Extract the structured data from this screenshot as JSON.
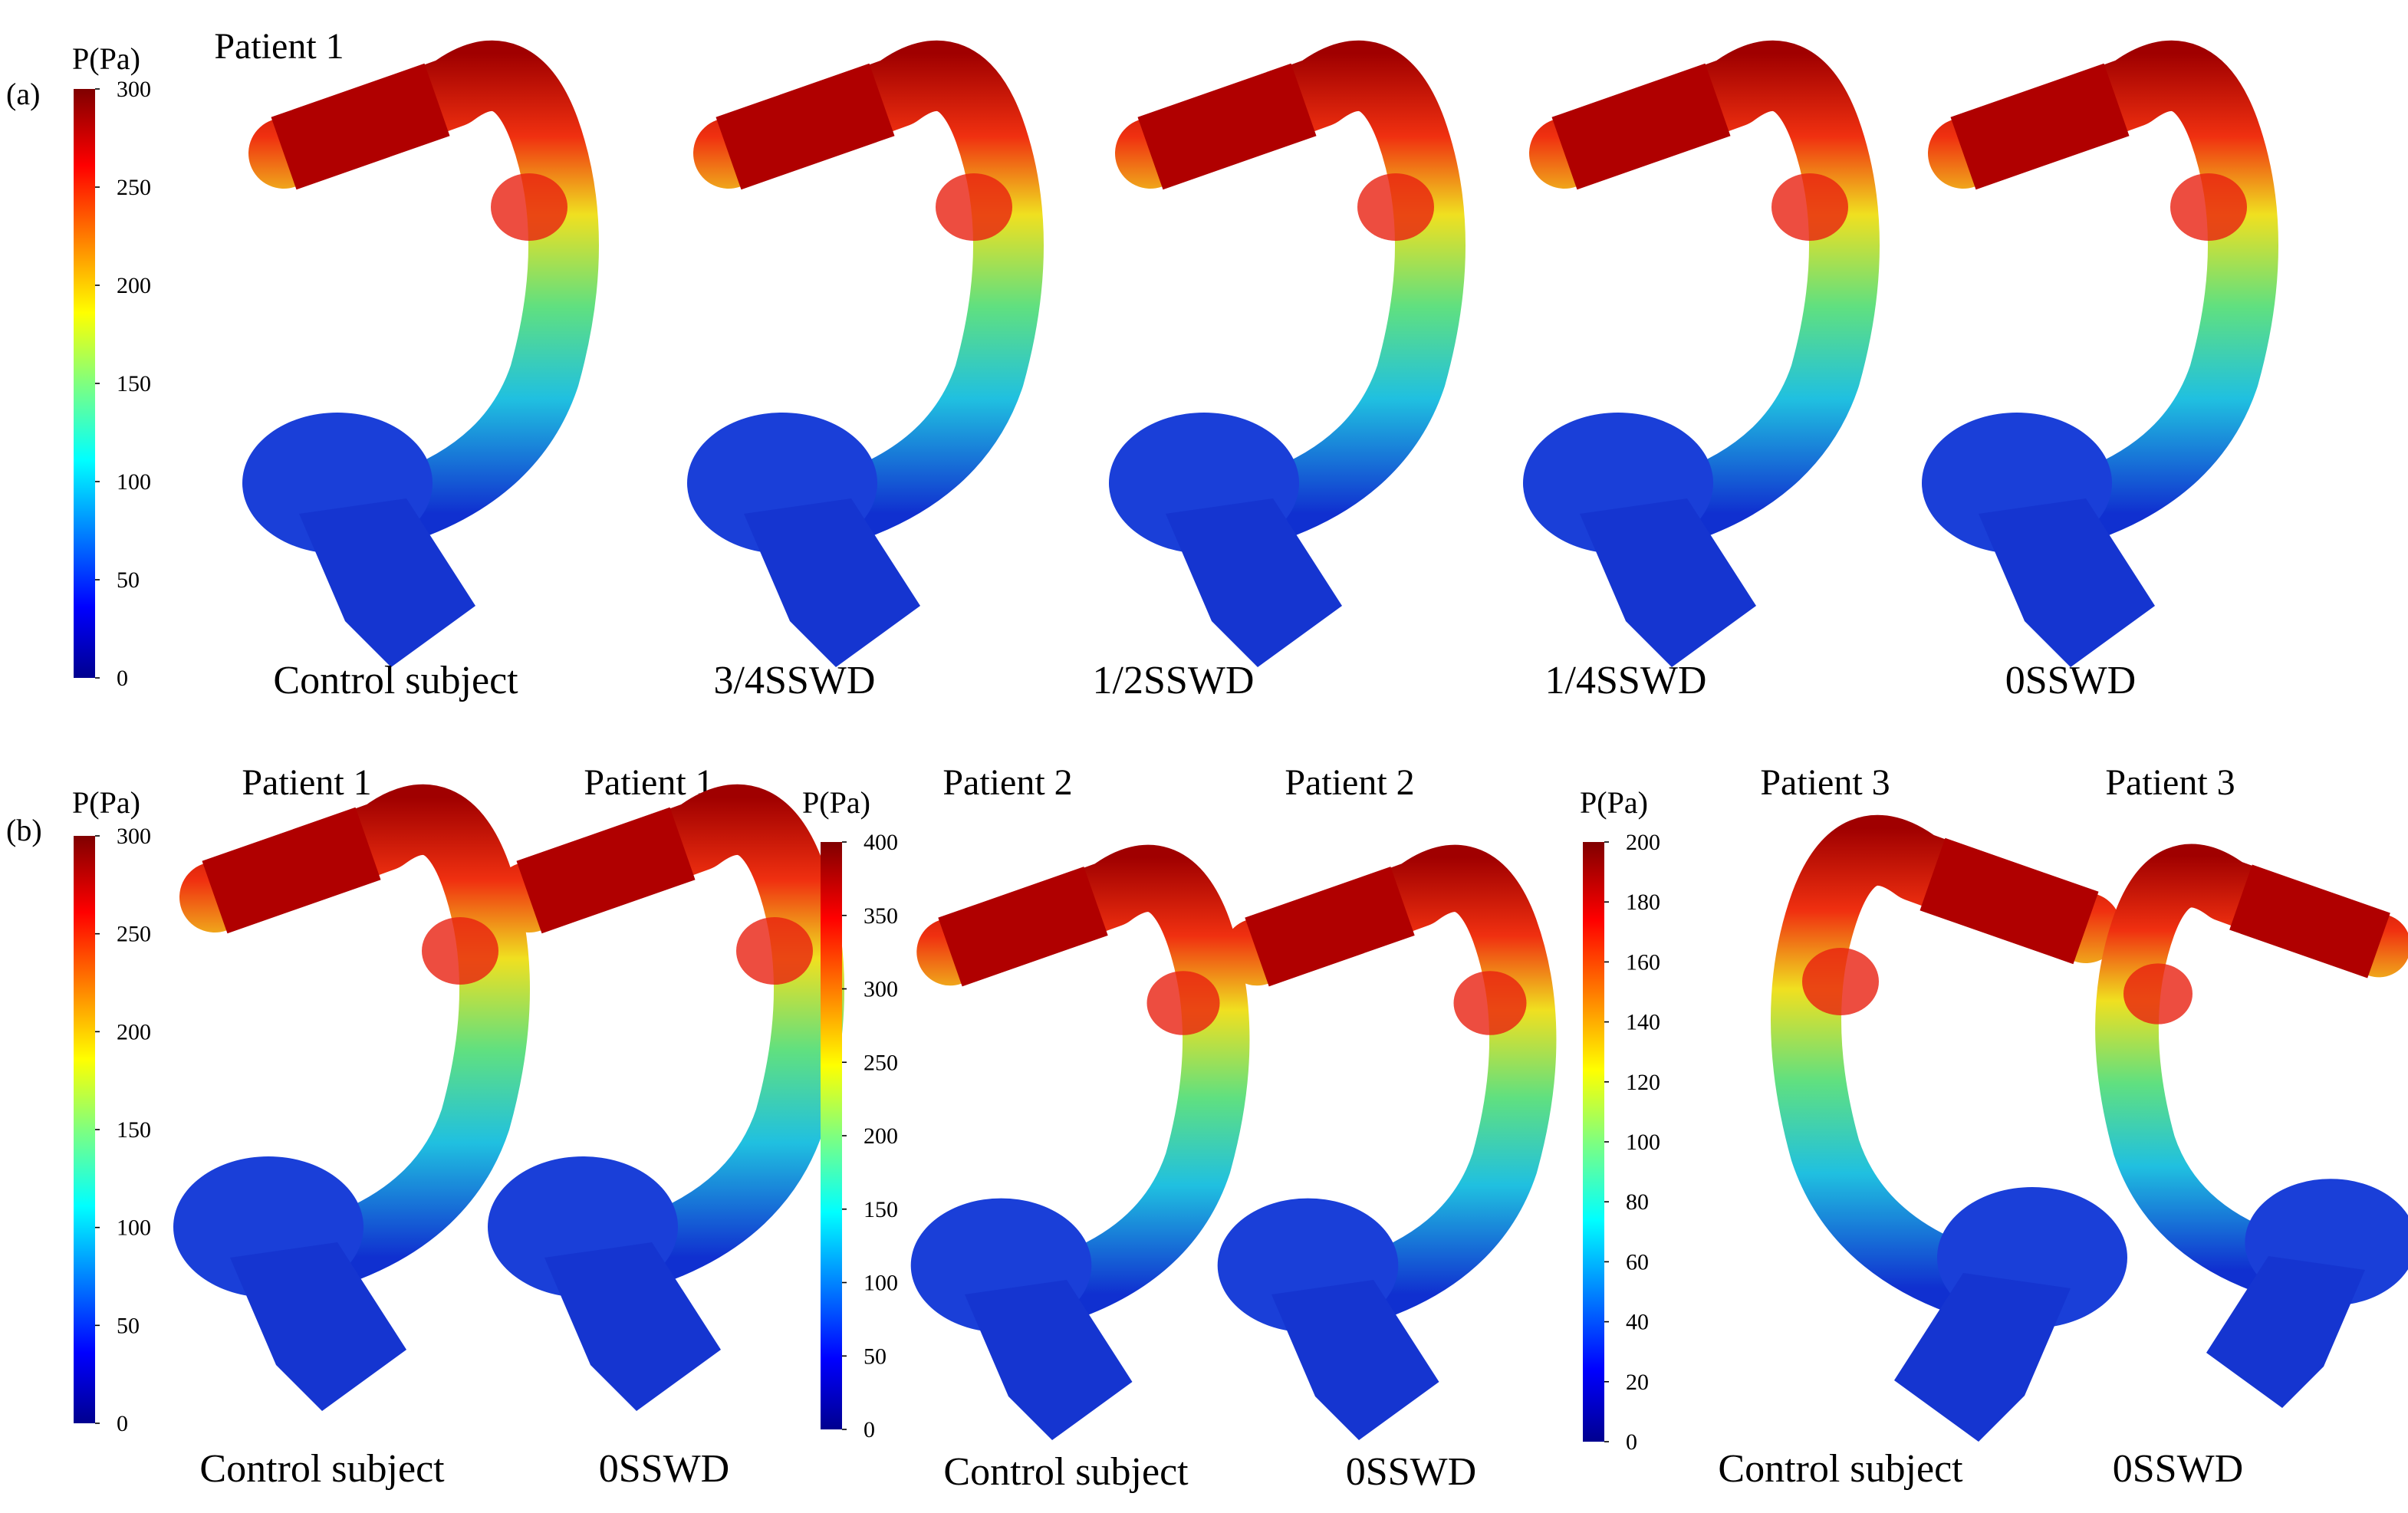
{
  "panel_a": {
    "label": "(a)",
    "title": "Patient 1",
    "colorbar": {
      "title": "P(Pa)",
      "lim": [
        0,
        300
      ],
      "ticks": [
        0,
        50,
        100,
        150,
        200,
        250,
        300
      ]
    },
    "captions": [
      "Control subject",
      "3/4SSWD",
      "1/2SSWD",
      "1/4SSWD",
      "0SSWD"
    ]
  },
  "panel_b": {
    "label": "(b)",
    "groups": [
      {
        "colorbar": {
          "title": "P(Pa)",
          "lim": [
            0,
            300
          ],
          "ticks": [
            0,
            50,
            100,
            150,
            200,
            250,
            300
          ]
        },
        "titles": [
          "Patient 1",
          "Patient 1"
        ],
        "captions": [
          "Control subject",
          "0SSWD"
        ]
      },
      {
        "colorbar": {
          "title": "P(Pa)",
          "lim": [
            0,
            400
          ],
          "ticks": [
            0,
            50,
            100,
            150,
            200,
            250,
            300,
            350,
            400
          ]
        },
        "titles": [
          "Patient 2",
          "Patient 2"
        ],
        "captions": [
          "Control subject",
          "0SSWD"
        ]
      },
      {
        "colorbar": {
          "title": "P(Pa)",
          "lim": [
            0,
            200
          ],
          "ticks": [
            0,
            20,
            40,
            60,
            80,
            100,
            120,
            140,
            160,
            180,
            200
          ]
        },
        "titles": [
          "Patient 3",
          "Patient 3"
        ],
        "captions": [
          "Control subject",
          "0SSWD"
        ]
      }
    ]
  }
}
